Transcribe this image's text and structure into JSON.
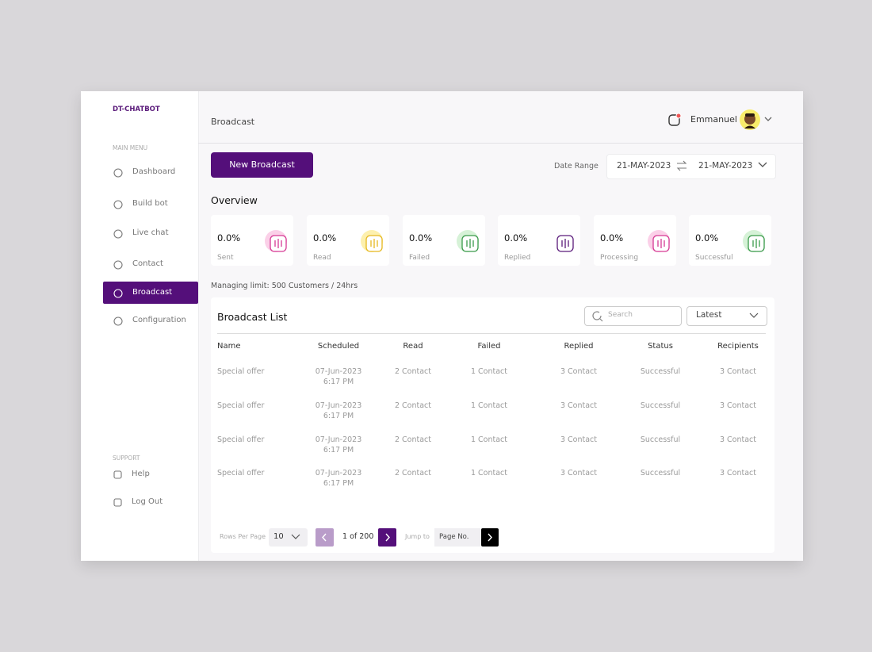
{
  "sidebar": {
    "brand": "DT-CHATBOT",
    "main_menu_label": "MAIN MENU",
    "menu": [
      "Dashboard",
      "Build bot",
      "Live chat",
      "Contact",
      "Broadcast",
      "Configuration"
    ],
    "support_label": "SUPPORT",
    "support": [
      "Help",
      "Log Out"
    ]
  },
  "header": {
    "title": "Broadcast",
    "user": "Emmanuel"
  },
  "toolbar": {
    "button": "New Broadcast",
    "date_range_label": "Date Range",
    "date_from": "21-MAY-2023",
    "date_to": "21-MAY-2023"
  },
  "overview": {
    "title": "Overview",
    "cards": [
      {
        "value": "0.0%",
        "label": "Sent"
      },
      {
        "value": "0.0%",
        "label": "Read"
      },
      {
        "value": "0.0%",
        "label": "Failed"
      },
      {
        "value": "0.0%",
        "label": "Replied"
      },
      {
        "value": "0.0%",
        "label": "Processing"
      },
      {
        "value": "0.0%",
        "label": "Successful"
      }
    ],
    "limit": "Managing limit: 500 Customers / 24hrs"
  },
  "list": {
    "title": "Broadcast List",
    "search_placeholder": "Search",
    "sort": "Latest",
    "columns": [
      "Name",
      "Scheduled",
      "Read",
      "Failed",
      "Replied",
      "Status",
      "Recipients"
    ],
    "rows": [
      {
        "name": "Special offer",
        "scheduled_date": "07-Jun-2023",
        "scheduled_time": "6:17 PM",
        "read": "2 Contact",
        "failed": "1 Contact",
        "replied": "3 Contact",
        "status": "Successful",
        "recipients": "3 Contact"
      },
      {
        "name": "Special offer",
        "scheduled_date": "07-Jun-2023",
        "scheduled_time": "6:17 PM",
        "read": "2 Contact",
        "failed": "1 Contact",
        "replied": "3 Contact",
        "status": "Successful",
        "recipients": "3 Contact"
      },
      {
        "name": "Special offer",
        "scheduled_date": "07-Jun-2023",
        "scheduled_time": "6:17 PM",
        "read": "2 Contact",
        "failed": "1 Contact",
        "replied": "3 Contact",
        "status": "Successful",
        "recipients": "3 Contact"
      },
      {
        "name": "Special offer",
        "scheduled_date": "07-Jun-2023",
        "scheduled_time": "6:17 PM",
        "read": "2 Contact",
        "failed": "1 Contact",
        "replied": "3 Contact",
        "status": "Successful",
        "recipients": "3 Contact"
      }
    ]
  },
  "pagination": {
    "rows_per_page_label": "Rows Per Page",
    "rows_per_page": "10",
    "page_info": "1 of 200",
    "jump_label": "Jump to",
    "page_input_placeholder": "Page No."
  }
}
